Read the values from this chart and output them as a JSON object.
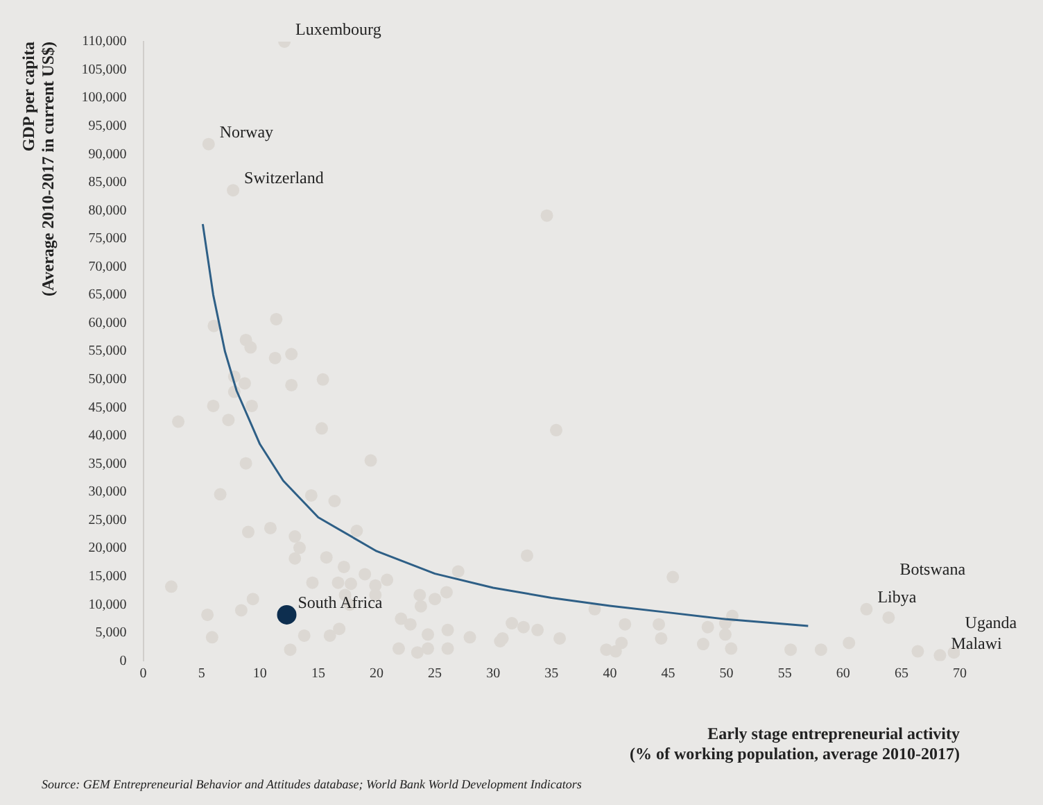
{
  "chart_data": {
    "type": "scatter",
    "xlabel": "Early stage entrepreneurial activity\n(% of working population, average 2010-2017)",
    "ylabel": "GDP per capita\n(Average 2010-2017 in current US$)",
    "xlim": [
      0,
      70
    ],
    "xticks": [
      0,
      5,
      10,
      15,
      20,
      25,
      30,
      35,
      40,
      45,
      50,
      55,
      60,
      65,
      70
    ],
    "ylim": [
      0,
      110000
    ],
    "yticks": [
      0,
      {
        "value": 5000,
        "label": "5,000"
      },
      {
        "value": 10000,
        "label": "10,000"
      },
      {
        "value": 15000,
        "label": "15,000"
      },
      {
        "value": 20000,
        "label": "20,000"
      },
      {
        "value": 25000,
        "label": "25,000"
      },
      {
        "value": 30000,
        "label": "30,000"
      },
      {
        "value": 35000,
        "label": "35,000"
      },
      {
        "value": 40000,
        "label": "40,000"
      },
      {
        "value": 45000,
        "label": "45,000"
      },
      {
        "value": 50000,
        "label": "50,000"
      },
      {
        "value": 55000,
        "label": "55,000"
      },
      {
        "value": 60000,
        "label": "60,000"
      },
      {
        "value": 65000,
        "label": "65,000"
      },
      {
        "value": 70000,
        "label": "70,000"
      },
      {
        "value": 75000,
        "label": "75,000"
      },
      {
        "value": 80000,
        "label": "80,000"
      },
      {
        "value": 85000,
        "label": "85,000"
      },
      {
        "value": 90000,
        "label": "90,000"
      },
      {
        "value": 95000,
        "label": "95,000"
      },
      {
        "value": 100000,
        "label": "100,000"
      },
      {
        "value": 105000,
        "label": "105,000"
      },
      {
        "value": 110000,
        "label": "110,000"
      }
    ],
    "grid": false,
    "legend": false,
    "marker": "circle",
    "series": [
      {
        "color": "#dcd8d3",
        "x": [
          12.1,
          5.6,
          7.7,
          34.6,
          35.4,
          62,
          63.9,
          68.3,
          69.5,
          6.05,
          11.4,
          8.8,
          9.2,
          11.3,
          12.7,
          7.8,
          8.7,
          7.8,
          12.7,
          15.4,
          6.0,
          9.3,
          7.3,
          3.0,
          15.3,
          19.5,
          8.8,
          6.6,
          14.4,
          16.4,
          18.3,
          9.0,
          10.9,
          13.0,
          13.4,
          13.0,
          15.7,
          17.2,
          19.0,
          20.9,
          19.9,
          2.4,
          14.5,
          16.7,
          17.8,
          17.3,
          19.9,
          17.7,
          27.0,
          23.7,
          25.0,
          26.0,
          23.8,
          9.4,
          8.4,
          5.5,
          5.9,
          13.8,
          16.0,
          16.8,
          12.6,
          22.1,
          22.9,
          24.4,
          26.1,
          21.9,
          23.5,
          24.4,
          26.1,
          28.0,
          30.6,
          32.9,
          45.4,
          38.7,
          50.5,
          41.3,
          44.2,
          48.4,
          49.9,
          31.6,
          32.6,
          33.8,
          30.8,
          35.7,
          41.0,
          44.4,
          48.0,
          49.9,
          39.7,
          40.5,
          50.4,
          55.5,
          58.1,
          60.5,
          66.4
        ],
        "values": [
          110000,
          91800,
          83600,
          79100,
          41000,
          9200,
          7700,
          1000,
          1500,
          59500,
          60700,
          57000,
          55700,
          53800,
          54500,
          50500,
          49300,
          47800,
          49000,
          50000,
          45300,
          45300,
          42800,
          42500,
          41300,
          35600,
          35100,
          29600,
          29400,
          28400,
          23100,
          22900,
          23600,
          22100,
          20100,
          18200,
          18400,
          16700,
          15400,
          14400,
          13400,
          13200,
          13900,
          13900,
          13700,
          11700,
          11700,
          10000,
          15900,
          11700,
          11000,
          12200,
          9700,
          11000,
          9000,
          8200,
          4200,
          4500,
          4500,
          5700,
          2000,
          7500,
          6500,
          4700,
          5500,
          2200,
          1500,
          2200,
          2200,
          4200,
          3500,
          18700,
          14900,
          9200,
          8000,
          6500,
          6500,
          6000,
          6700,
          6700,
          6000,
          5500,
          4000,
          4000,
          3200,
          4000,
          3000,
          4700,
          2000,
          1700,
          2200,
          2000,
          2000,
          3200,
          1700
        ]
      },
      {
        "color": "#0d2e4f",
        "x": [
          12.3
        ],
        "values": [
          8200
        ]
      },
      {
        "type": "line",
        "color": "#2e5f86",
        "marker": "none",
        "x": [
          5.1,
          6,
          7,
          8,
          10,
          12,
          15,
          20,
          25,
          30,
          35,
          40,
          45,
          50,
          57
        ],
        "values": [
          77600,
          65000,
          55000,
          48000,
          38500,
          32000,
          25500,
          19500,
          15500,
          13000,
          11200,
          9800,
          8600,
          7400,
          6200
        ]
      }
    ],
    "annotations": [
      {
        "text": "Luxembourg",
        "x": 12.1,
        "y": 110000
      },
      {
        "text": "Norway",
        "x": 5.6,
        "y": 91800
      },
      {
        "text": "Switzerland",
        "x": 7.7,
        "y": 83600
      },
      {
        "text": "South Africa",
        "x": 12.3,
        "y": 8200
      },
      {
        "text": "Libya",
        "x": 62,
        "y": 9200
      },
      {
        "text": "Botswana",
        "x": 63.9,
        "y": 7700
      },
      {
        "text": "Malawi",
        "x": 68.3,
        "y": 1000
      },
      {
        "text": "Uganda",
        "x": 69.5,
        "y": 1500
      },
      "Source: GEM Entrepreneurial Behavior and Attitudes database; World Bank World Development Indicators"
    ]
  }
}
